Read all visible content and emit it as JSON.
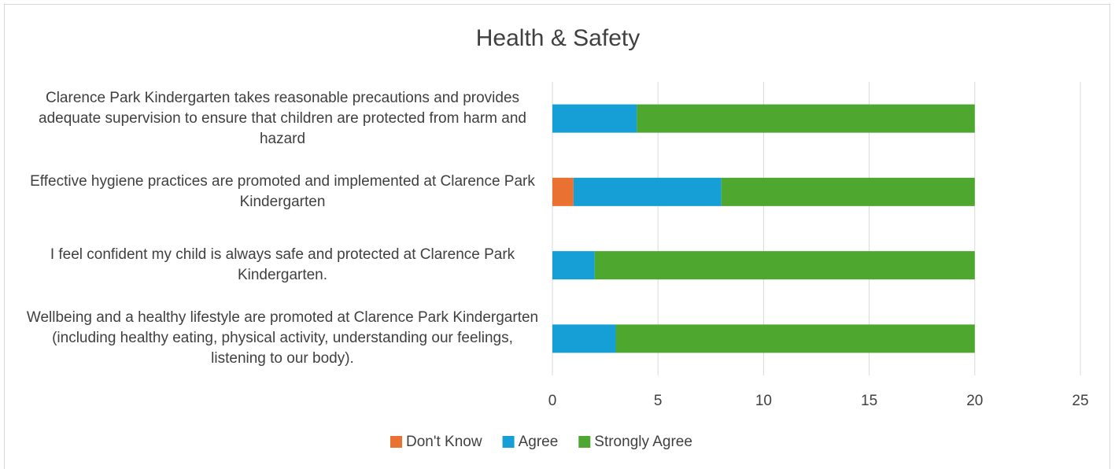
{
  "chart_data": {
    "type": "stacked_barh",
    "title": "Health & Safety",
    "categories": [
      "Clarence Park Kindergarten takes reasonable precautions and provides adequate supervision to ensure that children are protected from harm and hazard",
      "Effective hygiene practices are promoted and implemented at Clarence Park Kindergarten",
      "I feel confident my child is always safe and protected at Clarence Park Kindergarten.",
      "Wellbeing and a healthy lifestyle are promoted at Clarence Park Kindergarten (including healthy eating, physical activity, understanding our feelings, listening to our body)."
    ],
    "series": [
      {
        "name": "Don't Know",
        "color": "#e97132",
        "values": [
          0,
          1,
          0,
          0
        ]
      },
      {
        "name": "Agree",
        "color": "#159fd6",
        "values": [
          4,
          7,
          2,
          3
        ]
      },
      {
        "name": "Strongly Agree",
        "color": "#4ea72e",
        "values": [
          16,
          12,
          18,
          17
        ]
      }
    ],
    "xlim": [
      0,
      25
    ],
    "xticks": [
      0,
      5,
      10,
      15,
      20,
      25
    ],
    "grid": true,
    "legend": "bottom"
  }
}
